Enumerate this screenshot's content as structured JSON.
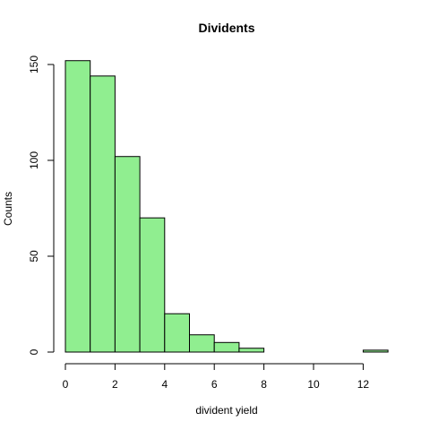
{
  "chart_data": {
    "type": "bar",
    "title": "Dividents",
    "xlabel": "divident yield",
    "ylabel": "Counts",
    "bins": [
      {
        "x0": 0,
        "x1": 1,
        "count": 152
      },
      {
        "x0": 1,
        "x1": 2,
        "count": 144
      },
      {
        "x0": 2,
        "x1": 3,
        "count": 102
      },
      {
        "x0": 3,
        "x1": 4,
        "count": 70
      },
      {
        "x0": 4,
        "x1": 5,
        "count": 20
      },
      {
        "x0": 5,
        "x1": 6,
        "count": 9
      },
      {
        "x0": 6,
        "x1": 7,
        "count": 5
      },
      {
        "x0": 7,
        "x1": 8,
        "count": 2
      },
      {
        "x0": 8,
        "x1": 9,
        "count": 0
      },
      {
        "x0": 9,
        "x1": 10,
        "count": 0
      },
      {
        "x0": 10,
        "x1": 11,
        "count": 0
      },
      {
        "x0": 11,
        "x1": 12,
        "count": 0
      },
      {
        "x0": 12,
        "x1": 13,
        "count": 1
      }
    ],
    "xticks": [
      0,
      2,
      4,
      6,
      8,
      10,
      12
    ],
    "yticks": [
      0,
      50,
      100,
      150
    ],
    "xlim": [
      0,
      13
    ],
    "ylim": [
      0,
      152
    ],
    "bar_color": "#90ee90",
    "grid": false,
    "legend": "none"
  }
}
